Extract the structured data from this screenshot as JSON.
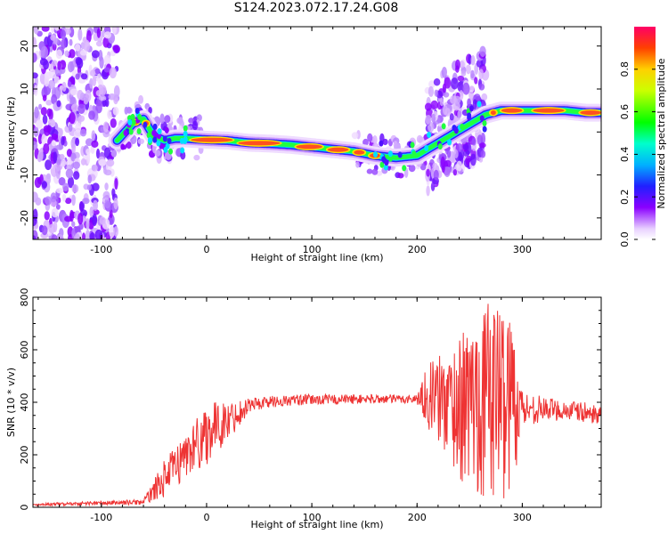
{
  "title": "S124.2023.072.17.24.G08",
  "chart_data": [
    {
      "type": "heatmap",
      "xlabel": "Height of straight line (km)",
      "ylabel": "Frequency (Hz)",
      "xlim": [
        -165,
        375
      ],
      "ylim": [
        -25,
        24.5
      ],
      "xticks": [
        -100,
        0,
        100,
        200,
        300
      ],
      "yticks": [
        -20,
        -10,
        0,
        10,
        20
      ],
      "colorbar": {
        "label": "Normalized spectral amplitude",
        "range": [
          0,
          1
        ],
        "ticks": [
          0.0,
          0.2,
          0.4,
          0.6,
          0.8
        ]
      },
      "ridge": {
        "x": [
          -85,
          -70,
          -60,
          -50,
          -40,
          -30,
          -20,
          0,
          20,
          40,
          60,
          80,
          100,
          120,
          140,
          160,
          180,
          200,
          210,
          265,
          280,
          300,
          320,
          340,
          360,
          375
        ],
        "y": [
          -2,
          2,
          3,
          -1,
          -2,
          -1.5,
          -1.5,
          -1.8,
          -2,
          -2.5,
          -2.7,
          -3,
          -3.5,
          -4,
          -4.5,
          -5.5,
          -6,
          -5.5,
          -4,
          4,
          5,
          5,
          5,
          5,
          4.5,
          4.5
        ]
      },
      "noise_regions": [
        {
          "x": [
            -165,
            -85
          ],
          "y": [
            -25,
            24.5
          ]
        },
        {
          "x": [
            210,
            265
          ],
          "y": [
            -20,
            15
          ]
        }
      ]
    },
    {
      "type": "line",
      "xlabel": "Height of straight line (km)",
      "ylabel": "SNR (10 * v/v)",
      "xlim": [
        -165,
        375
      ],
      "ylim": [
        0,
        800
      ],
      "xticks": [
        -100,
        0,
        100,
        200,
        300
      ],
      "yticks": [
        0,
        200,
        400,
        600,
        800
      ],
      "series": [
        {
          "color": "#ee3333",
          "envelope": {
            "x": [
              -165,
              -60,
              -40,
              -20,
              0,
              20,
              40,
              60,
              100,
              150,
              200,
              210,
              230,
              250,
              270,
              290,
              300,
              320,
              340,
              360,
              375
            ],
            "low": [
              5,
              10,
              40,
              100,
              150,
              250,
              360,
              380,
              390,
              395,
              395,
              300,
              150,
              30,
              10,
              20,
              300,
              330,
              330,
              320,
              320
            ],
            "high": [
              15,
              30,
              180,
              280,
              400,
              400,
              420,
              425,
              430,
              430,
              430,
              550,
              600,
              700,
              800,
              750,
              450,
              420,
              410,
              400,
              380
            ]
          }
        }
      ]
    }
  ]
}
